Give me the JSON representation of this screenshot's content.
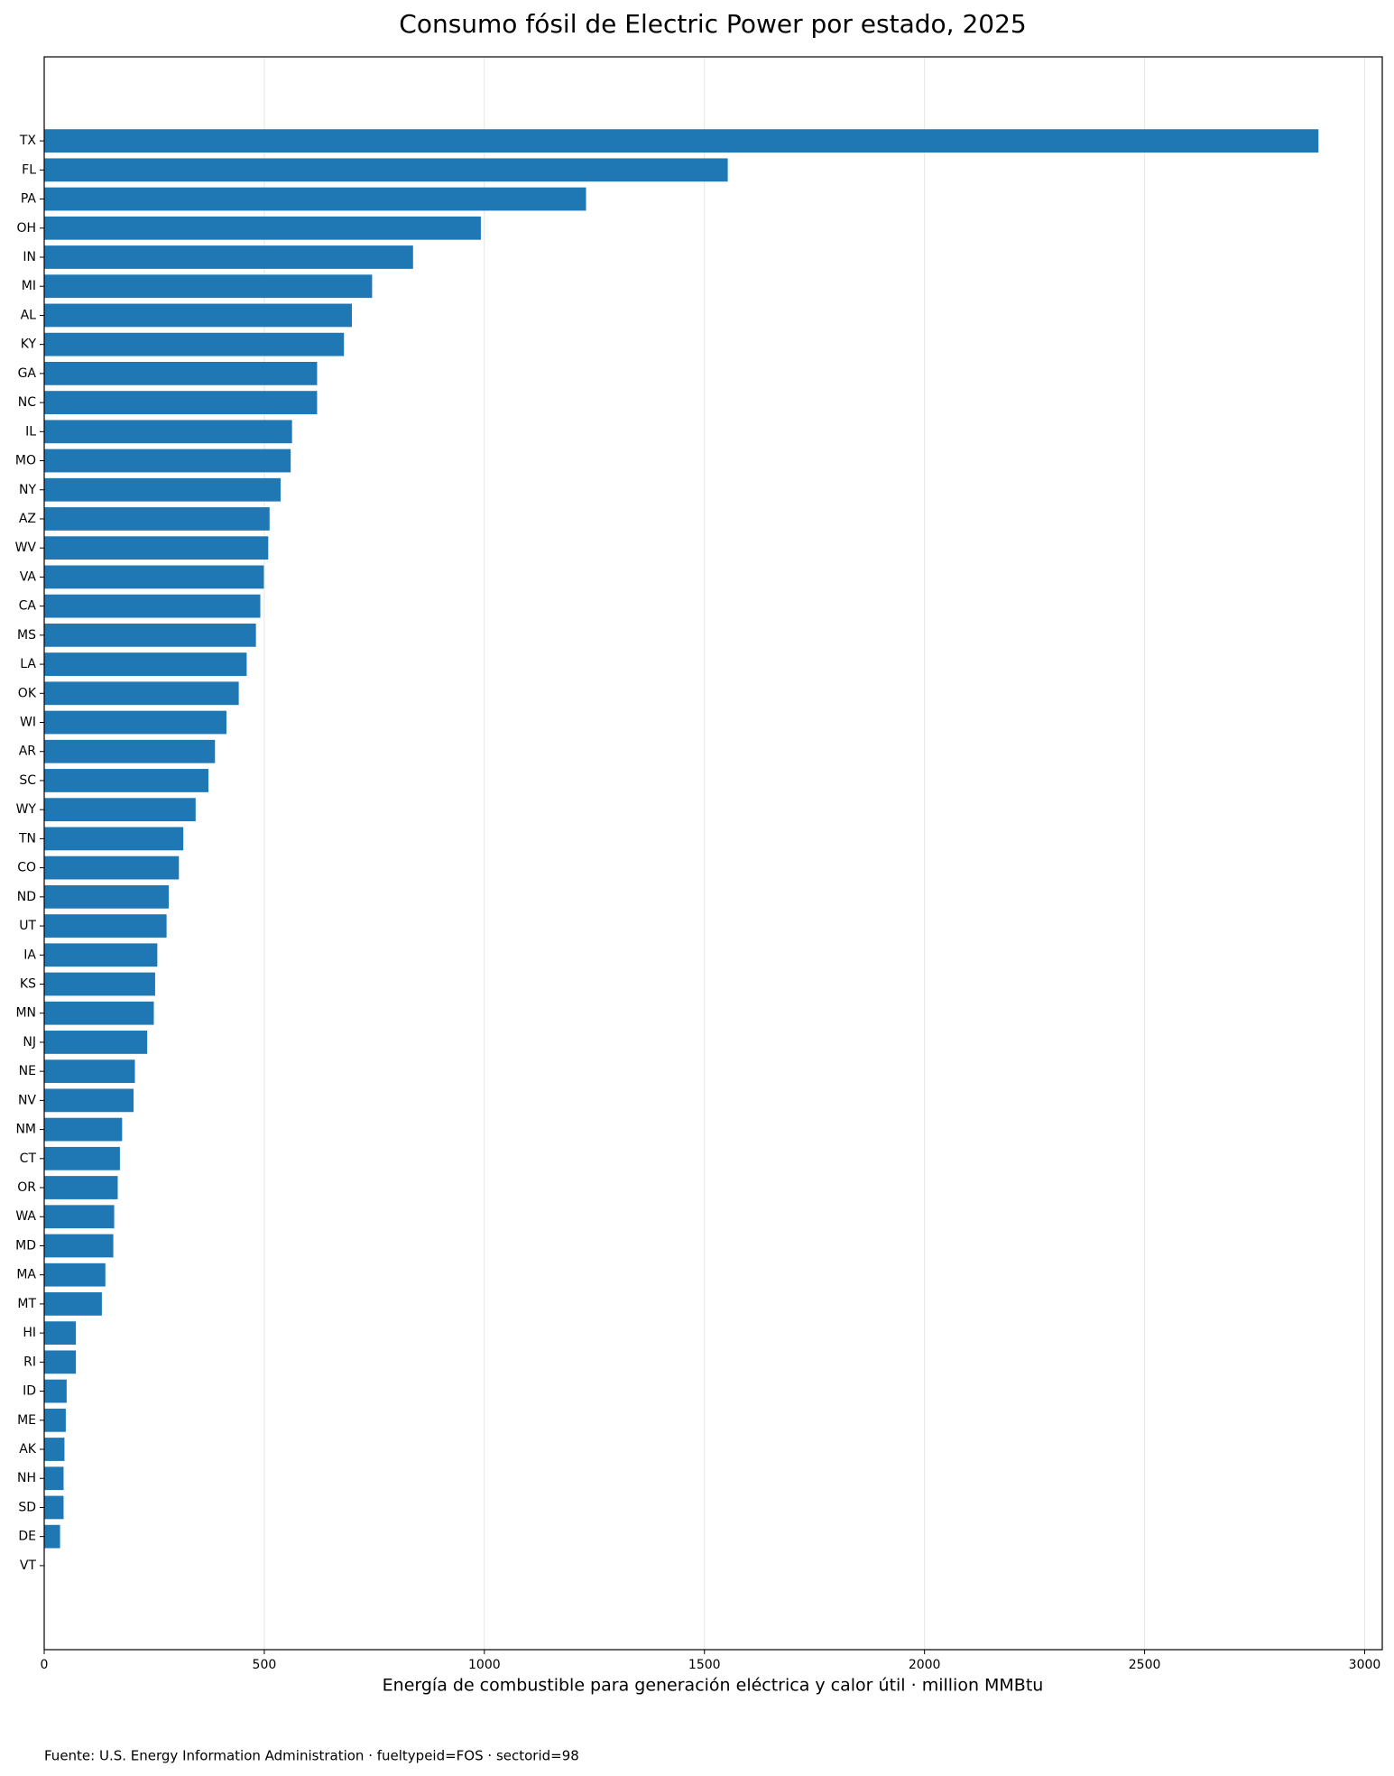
{
  "chart_data": {
    "type": "barh",
    "title": "Consumo fósil de Electric Power por estado, 2025",
    "x_label": "Energía de combustible para generación eléctrica y calor útil · million MMBtu",
    "source": "Fuente: U.S. Energy Information Administration · fueltypeid=FOS · sectorid=98",
    "categories": [
      "TX",
      "FL",
      "PA",
      "OH",
      "IN",
      "MI",
      "AL",
      "KY",
      "GA",
      "NC",
      "IL",
      "MO",
      "NY",
      "AZ",
      "WV",
      "VA",
      "CA",
      "MS",
      "LA",
      "OK",
      "WI",
      "AR",
      "SC",
      "WY",
      "TN",
      "CO",
      "ND",
      "UT",
      "IA",
      "KS",
      "MN",
      "NJ",
      "NE",
      "NV",
      "NM",
      "CT",
      "OR",
      "WA",
      "MD",
      "MA",
      "MT",
      "HI",
      "RI",
      "ID",
      "ME",
      "AK",
      "NH",
      "SD",
      "DE",
      "VT"
    ],
    "values": [
      2895,
      1553,
      1231,
      992,
      838,
      745,
      699,
      681,
      620,
      620,
      563,
      560,
      537,
      512,
      509,
      499,
      491,
      481,
      460,
      442,
      414,
      388,
      373,
      344,
      316,
      306,
      283,
      278,
      257,
      252,
      249,
      234,
      206,
      203,
      177,
      172,
      167,
      159,
      157,
      139,
      131,
      72,
      72,
      51,
      49,
      46,
      44,
      44,
      36,
      0
    ],
    "color": "#1f77b4",
    "xlim": [
      0,
      3040
    ],
    "xticks": [
      0,
      500,
      1000,
      1500,
      2000,
      2500,
      3000
    ],
    "grid": true
  }
}
